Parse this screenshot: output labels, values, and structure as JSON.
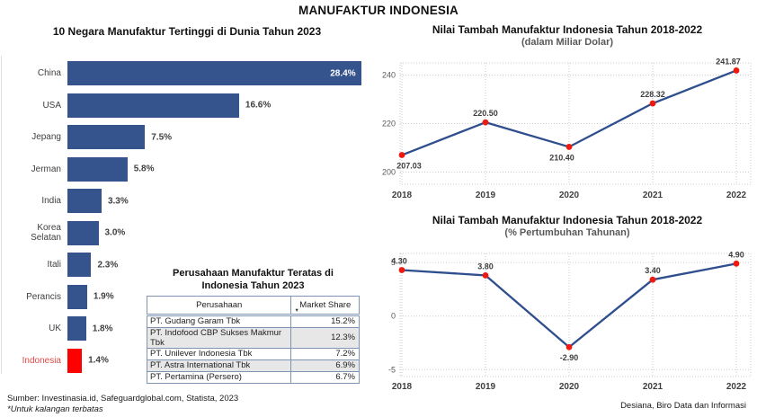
{
  "page": {
    "title": "MANUFAKTUR INDONESIA",
    "source_note": "Sumber: Investinasia.id, Safeguardglobal.com, Statista, 2023",
    "restricted_note": "*Untuk kalangan terbatas",
    "credit": "Desiana, Biro Data dan Informasi"
  },
  "colors": {
    "bar_blue": "#35538d",
    "line_blue": "#2e4e8e",
    "marker_red": "#ef1a0f",
    "highlight_red": "#ff0000",
    "indonesia_label_red": "#e04a4a",
    "grid_gray": "#cbcbcb",
    "tick_gray": "#595959",
    "label_dark": "#3d3d3d",
    "table_border": "#7f94b3",
    "stripe_gray": "#e7e7e7"
  },
  "chart_data": [
    {
      "id": "top10-countries",
      "type": "bar",
      "orientation": "horizontal",
      "title": "10 Negara Manufaktur Tertinggi di Dunia Tahun 2023",
      "unit": "%",
      "categories": [
        "China",
        "USA",
        "Jepang",
        "Jerman",
        "India",
        "Korea Selatan",
        "Itali",
        "Perancis",
        "UK",
        "Indonesia"
      ],
      "values": [
        28.4,
        16.6,
        7.5,
        5.8,
        3.3,
        3.0,
        2.3,
        1.9,
        1.8,
        1.4
      ],
      "value_labels": [
        "28.4%",
        "16.6%",
        "7.5%",
        "5.8%",
        "3.3%",
        "3.0%",
        "2.3%",
        "1.9%",
        "1.8%",
        "1.4%"
      ],
      "highlight_category": "Indonesia",
      "grid": false,
      "legend": false
    },
    {
      "id": "nilai-tambah-dolar",
      "type": "line",
      "title": "Nilai Tambah Manufaktur Indonesia Tahun 2018-2022",
      "subtitle": "(dalam Miliar Dolar)",
      "x": [
        2018,
        2019,
        2020,
        2021,
        2022
      ],
      "x_labels": [
        "2018",
        "2019",
        "2020",
        "2021",
        "2022"
      ],
      "values": [
        207.03,
        220.5,
        210.4,
        228.32,
        241.87
      ],
      "value_labels": [
        "207.03",
        "220.50",
        "210.40",
        "228.32",
        "241.87"
      ],
      "yticks": [
        200,
        220,
        240
      ],
      "ytick_labels": [
        "200",
        "220",
        "240"
      ],
      "ylim": [
        195,
        245
      ],
      "grid": "dotted",
      "legend": false,
      "label_positions": [
        "below",
        "above",
        "below",
        "above",
        "above"
      ],
      "label_dx": [
        8,
        0,
        -8,
        0,
        -9
      ]
    },
    {
      "id": "nilai-tambah-pertumbuhan",
      "type": "line",
      "title": "Nilai Tambah Manufaktur Indonesia Tahun 2018-2022",
      "subtitle": "(% Pertumbuhan Tahunan)",
      "x": [
        2018,
        2019,
        2020,
        2021,
        2022
      ],
      "x_labels": [
        "2018",
        "2019",
        "2020",
        "2021",
        "2022"
      ],
      "values": [
        4.3,
        3.8,
        -2.9,
        3.4,
        4.9
      ],
      "value_labels": [
        "4.30",
        "3.80",
        "-2.90",
        "3.40",
        "4.90"
      ],
      "yticks": [
        5,
        0,
        -5
      ],
      "ytick_labels": [
        "5",
        "0",
        "-5"
      ],
      "ylim": [
        -5.65,
        5.85
      ],
      "grid": "dotted",
      "legend": false,
      "label_positions": [
        "above",
        "above",
        "below",
        "above",
        "above"
      ],
      "label_dx": [
        -3,
        0,
        0,
        0,
        0
      ]
    }
  ],
  "table": {
    "title_line1": "Perusahaan Manufaktur Teratas di",
    "title_line2": "Indonesia Tahun 2023",
    "columns": [
      "Perusahaan",
      "Market Share"
    ],
    "sort_icon": "sort-down-icon",
    "rows": [
      {
        "name": "PT. Gudang Garam Tbk",
        "share": "15.2%"
      },
      {
        "name": "PT. Indofood CBP Sukses Makmur Tbk",
        "share": "12.3%"
      },
      {
        "name": "PT. Unilever Indonesia Tbk",
        "share": "7.2%"
      },
      {
        "name": "PT. Astra International Tbk",
        "share": "6.9%"
      },
      {
        "name": "PT. Pertamina (Persero)",
        "share": "6.7%"
      }
    ]
  }
}
